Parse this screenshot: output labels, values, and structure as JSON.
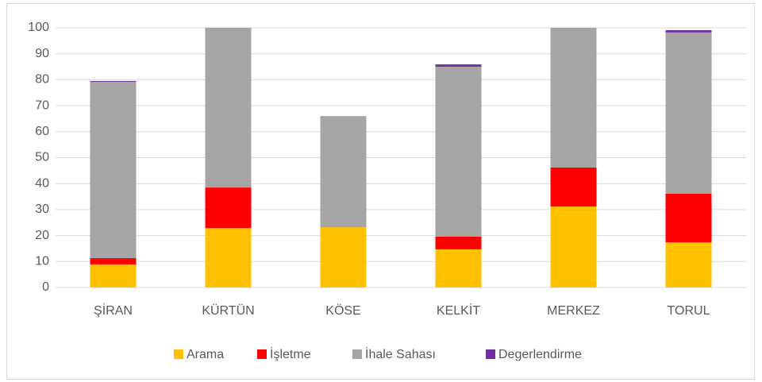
{
  "chart_data": {
    "type": "stacked_bar",
    "categories": [
      "ŞİRAN",
      "KÜRTÜN",
      "KÖSE",
      "KELKİT",
      "MERKEZ",
      "TORUL"
    ],
    "series": [
      {
        "name": "Arama",
        "color": "#ffc000",
        "values": [
          8.9,
          22.9,
          23.2,
          14.7,
          31.2,
          17.4
        ]
      },
      {
        "name": "İşletme",
        "color": "#ff0000",
        "values": [
          2.4,
          15.6,
          0,
          4.9,
          15.0,
          18.7
        ]
      },
      {
        "name": "İhale Sahası",
        "color": "#a5a5a5",
        "values": [
          67.9,
          61.5,
          42.8,
          65.4,
          53.8,
          62.1
        ]
      },
      {
        "name": "Degerlendirme",
        "color": "#7030a0",
        "values": [
          0.3,
          0,
          0,
          0.9,
          0,
          0.9
        ]
      }
    ],
    "ylim": [
      0,
      100
    ],
    "yticks": [
      0,
      10,
      20,
      30,
      40,
      50,
      60,
      70,
      80,
      90,
      100
    ],
    "grid": true,
    "legend": "bottom"
  }
}
